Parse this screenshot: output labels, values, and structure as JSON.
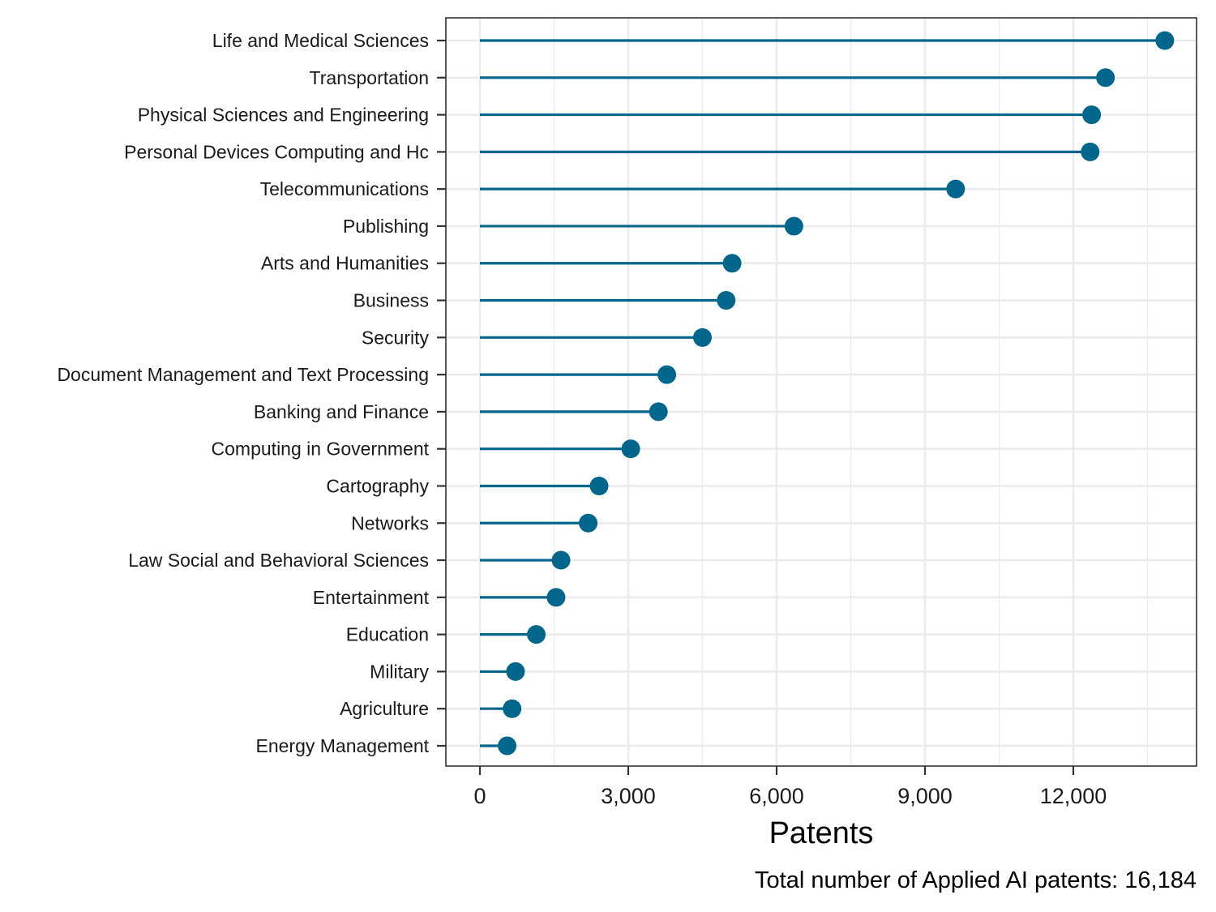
{
  "chart_data": {
    "type": "lollipop",
    "orientation": "horizontal",
    "categories": [
      "Life and Medical Sciences",
      "Transportation",
      "Physical Sciences and Engineering",
      "Personal Devices Computing and Hc",
      "Telecommunications",
      "Publishing",
      "Arts and Humanities",
      "Business",
      "Security",
      "Document Management and Text Processing",
      "Banking and Finance",
      "Computing in Government",
      "Cartography",
      "Networks",
      "Law Social and Behavioral Sciences",
      "Entertainment",
      "Education",
      "Military",
      "Agriculture",
      "Energy Management"
    ],
    "values": [
      13850,
      12650,
      12370,
      12340,
      9620,
      6350,
      5100,
      4980,
      4500,
      3780,
      3610,
      3050,
      2410,
      2190,
      1640,
      1540,
      1140,
      720,
      650,
      550
    ],
    "xlabel": "Patents",
    "xlim": [
      -700,
      14500
    ],
    "xticks": [
      0,
      3000,
      6000,
      9000,
      12000
    ],
    "xtick_labels": [
      "0",
      "3,000",
      "6,000",
      "9,000",
      "12,000"
    ],
    "grid": true,
    "caption": "Total number of Applied AI patents: 16,184",
    "colors": {
      "series": "#00668c",
      "grid": "#ebebeb",
      "axis": "#333333"
    }
  }
}
